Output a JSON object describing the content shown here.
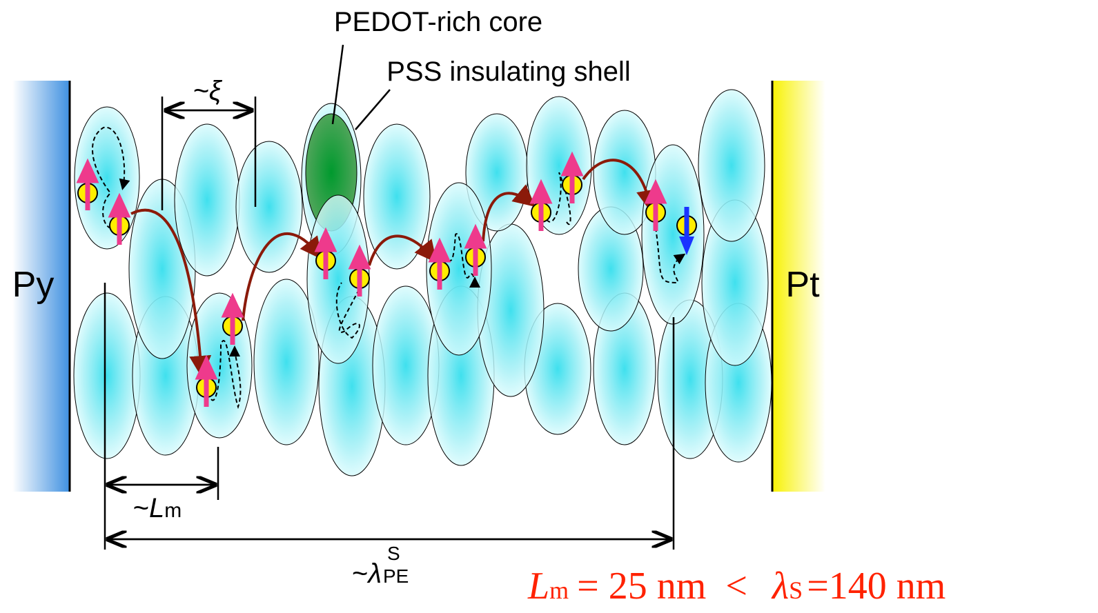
{
  "labels": {
    "core": "PEDOT-rich core",
    "shell": "PSS insulating shell",
    "xi": "~ξ",
    "left_electrode": "Py",
    "right_electrode": "Pt",
    "lm": {
      "prefix": "~",
      "symbol": "L",
      "sub": "m"
    },
    "lambda": {
      "prefix": "~",
      "symbol": "λ",
      "sup": "S",
      "sub": "PE"
    }
  },
  "equation": {
    "lhs_symbol": "L",
    "lhs_sub": "m",
    "lhs_rest": "= 25 nm  <",
    "rhs_symbol": "λ",
    "rhs_sub": "S",
    "rhs_rest": "=140 nm"
  }
}
